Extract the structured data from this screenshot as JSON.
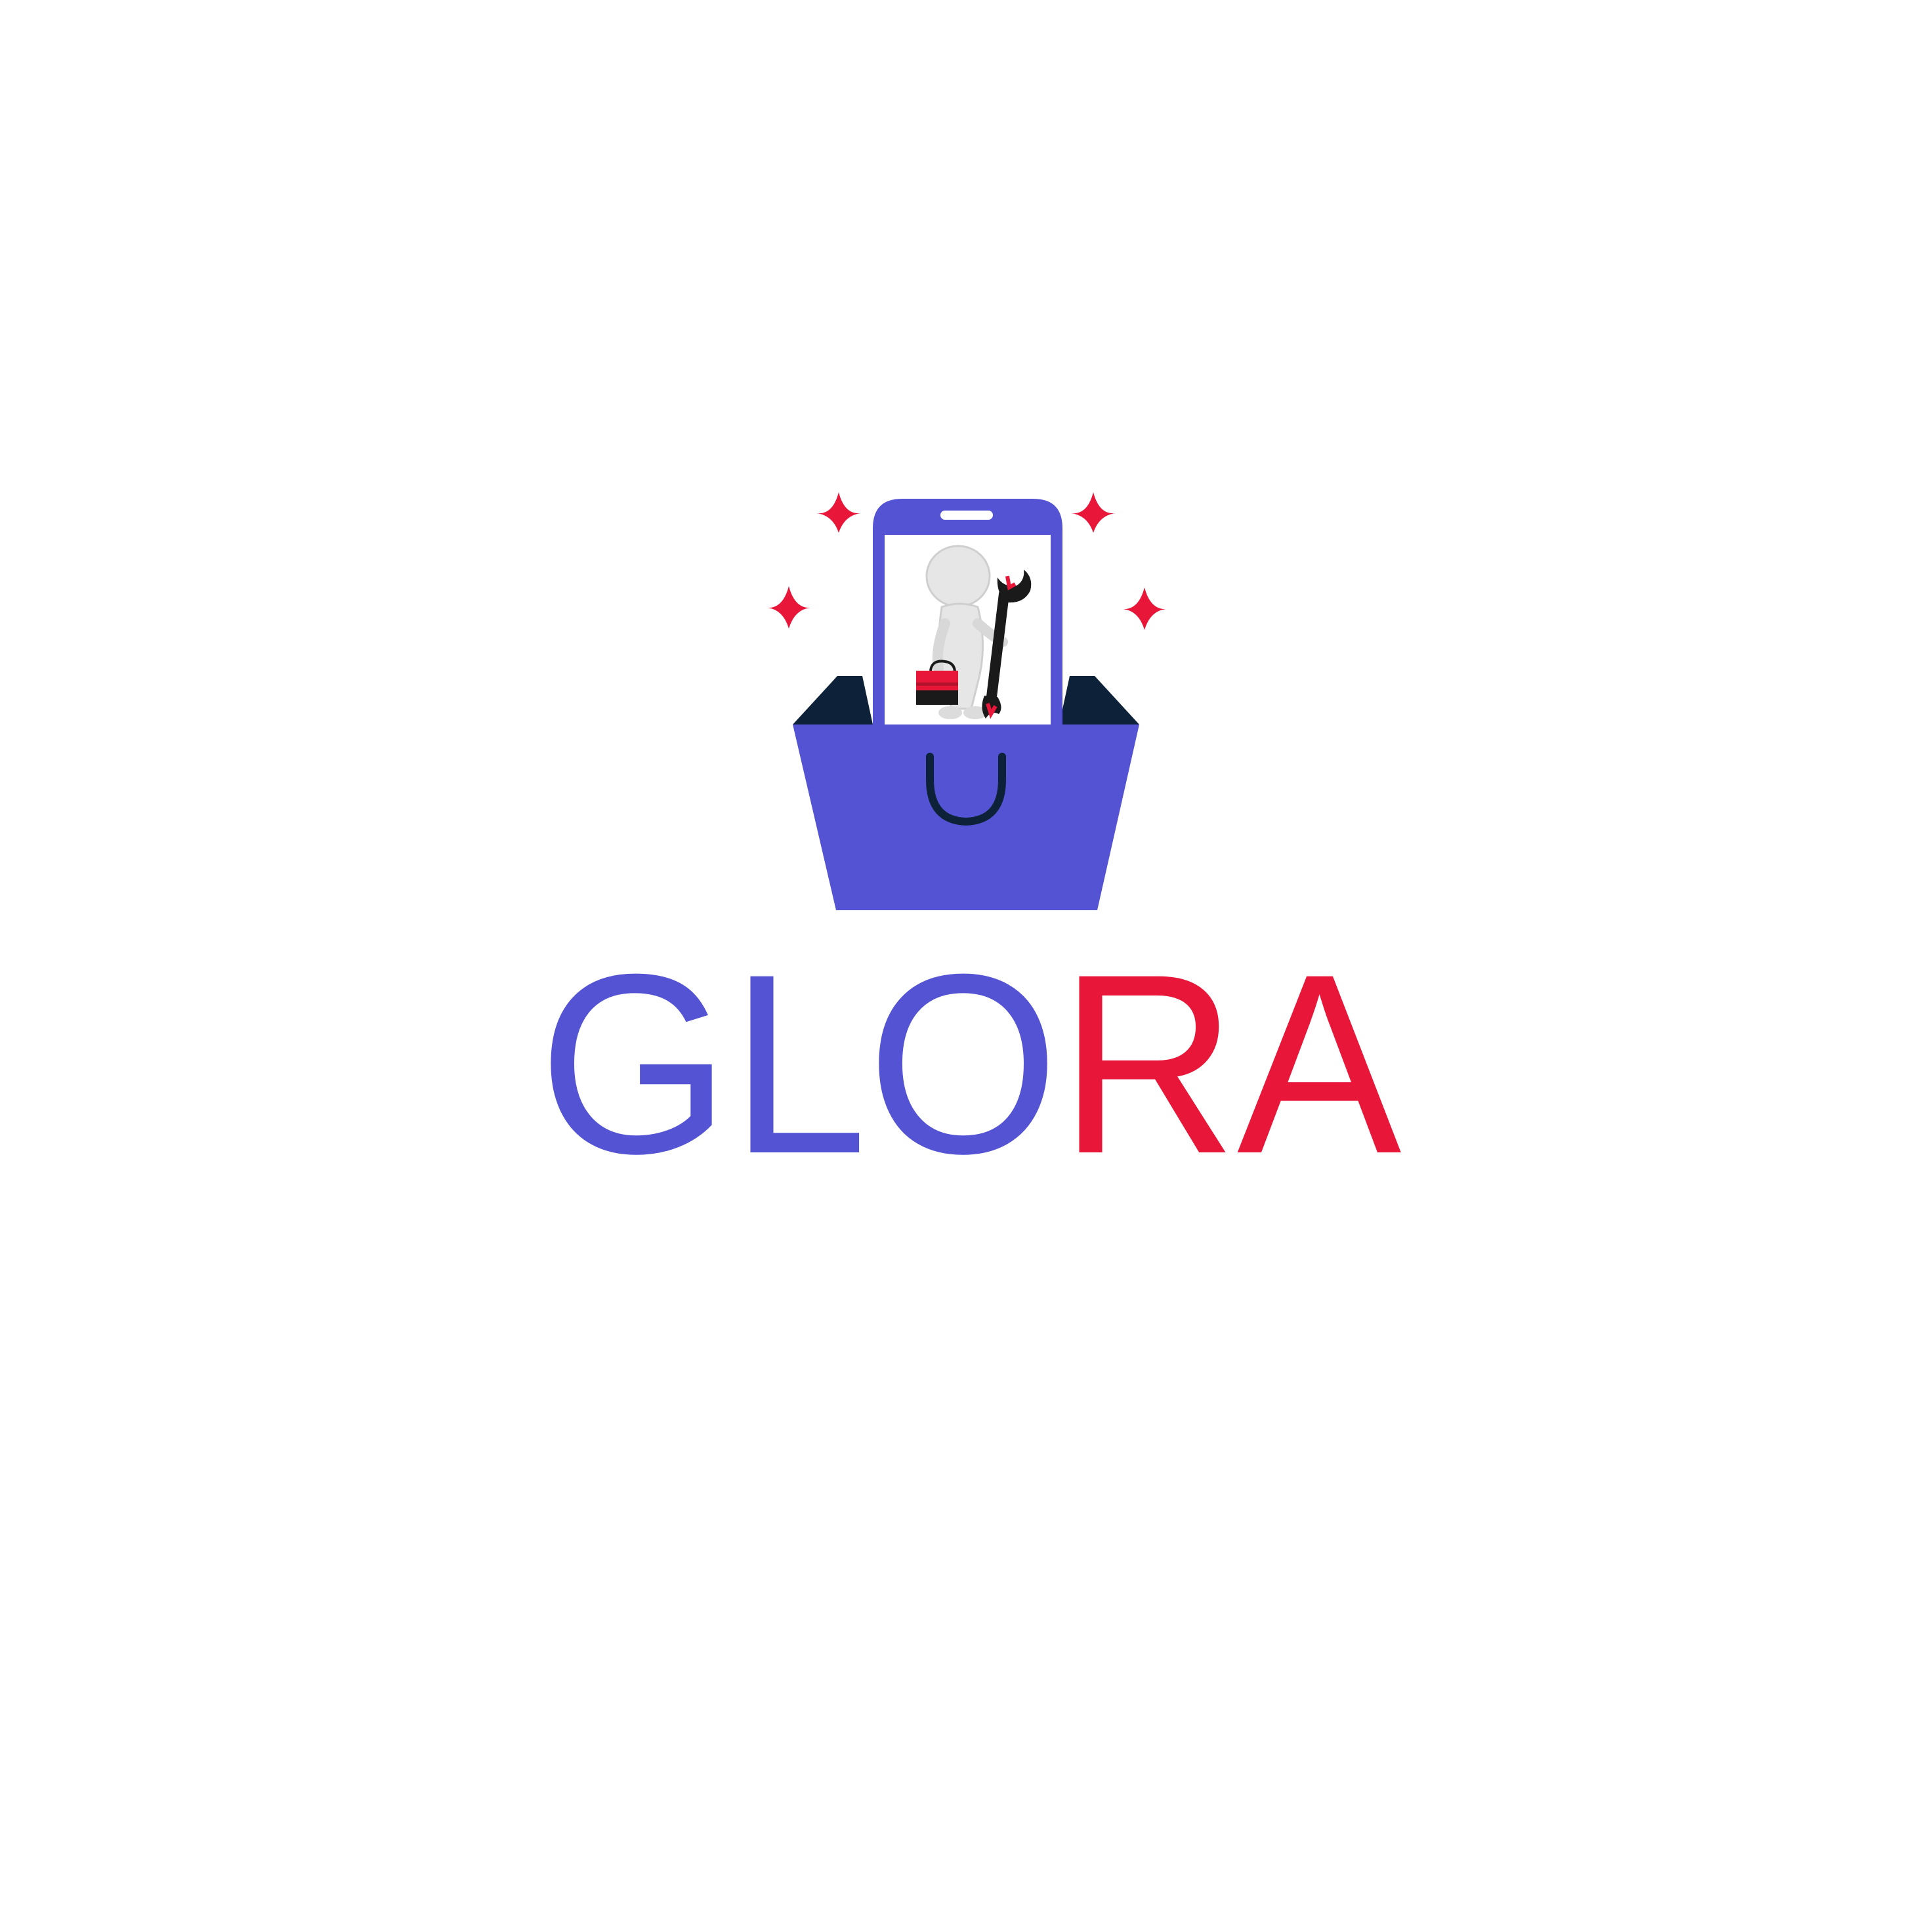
{
  "brand": {
    "name_primary_part": "GLO",
    "name_accent_part": "RA",
    "full_name": "GLORA"
  },
  "colors": {
    "primary": "#5353d4",
    "accent": "#e8173a",
    "dark": "#0d2238",
    "background": "#ffffff",
    "figure": "#e6e6e6"
  },
  "icons": [
    "phone-icon",
    "shopping-bag-icon",
    "sparkle-icon",
    "repairman-figure-icon",
    "wrench-icon",
    "toolbox-icon"
  ]
}
